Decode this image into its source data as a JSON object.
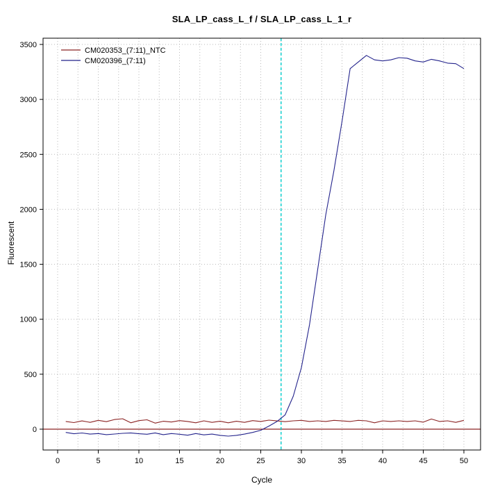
{
  "window": {
    "title": "SLA_LP_cass_L_f / SLA_LP_cass_L_1_r"
  },
  "chart_data": {
    "type": "line",
    "title": "SLA_LP_cass_L_f / SLA_LP_cass_L_1_r",
    "xlabel": "Cycle",
    "ylabel": "Fluorescent",
    "xlim": [
      -1.8,
      52
    ],
    "ylim": [
      -190,
      3560
    ],
    "x_ticks": [
      0,
      5,
      10,
      15,
      20,
      25,
      30,
      35,
      40,
      45,
      50
    ],
    "y_ticks": [
      0,
      500,
      1000,
      1500,
      2000,
      2500,
      3000,
      3500
    ],
    "x_grid_step": 2.5,
    "y_grid_step": 500,
    "grid": "dotted",
    "legend_position": "top-left",
    "threshold_line_y": 0,
    "ct_line_x": 27.5,
    "colors": {
      "ntc": "#8b2323",
      "sample": "#22228b",
      "ct_line": "#00cdcd",
      "threshold_line": "#8b2323",
      "grid": "#b8b8b8"
    },
    "x": [
      1,
      2,
      3,
      4,
      5,
      6,
      7,
      8,
      9,
      10,
      11,
      12,
      13,
      14,
      15,
      16,
      17,
      18,
      19,
      20,
      21,
      22,
      23,
      24,
      25,
      26,
      27,
      28,
      29,
      30,
      31,
      32,
      33,
      34,
      35,
      36,
      37,
      38,
      39,
      40,
      41,
      42,
      43,
      44,
      45,
      46,
      47,
      48,
      49,
      50
    ],
    "series": [
      {
        "name": "CM020353_(7:11)_NTC",
        "color": "#8b2323",
        "values": [
          70,
          60,
          75,
          62,
          80,
          68,
          88,
          95,
          58,
          78,
          85,
          55,
          72,
          65,
          78,
          70,
          58,
          76,
          62,
          72,
          58,
          72,
          62,
          78,
          70,
          82,
          75,
          68,
          76,
          80,
          70,
          76,
          70,
          80,
          75,
          70,
          80,
          76,
          58,
          76,
          70,
          76,
          70,
          76,
          64,
          92,
          70,
          76,
          62,
          80
        ]
      },
      {
        "name": "CM020396_(7:11)",
        "color": "#22228b",
        "values": [
          -30,
          -42,
          -35,
          -45,
          -40,
          -50,
          -44,
          -38,
          -34,
          -42,
          -46,
          -34,
          -50,
          -40,
          -46,
          -55,
          -40,
          -52,
          -45,
          -56,
          -63,
          -56,
          -45,
          -30,
          -10,
          28,
          70,
          130,
          300,
          560,
          950,
          1450,
          1950,
          2350,
          2800,
          3280,
          3340,
          3400,
          3360,
          3350,
          3360,
          3380,
          3375,
          3350,
          3340,
          3365,
          3350,
          3330,
          3325,
          3280
        ]
      }
    ]
  }
}
